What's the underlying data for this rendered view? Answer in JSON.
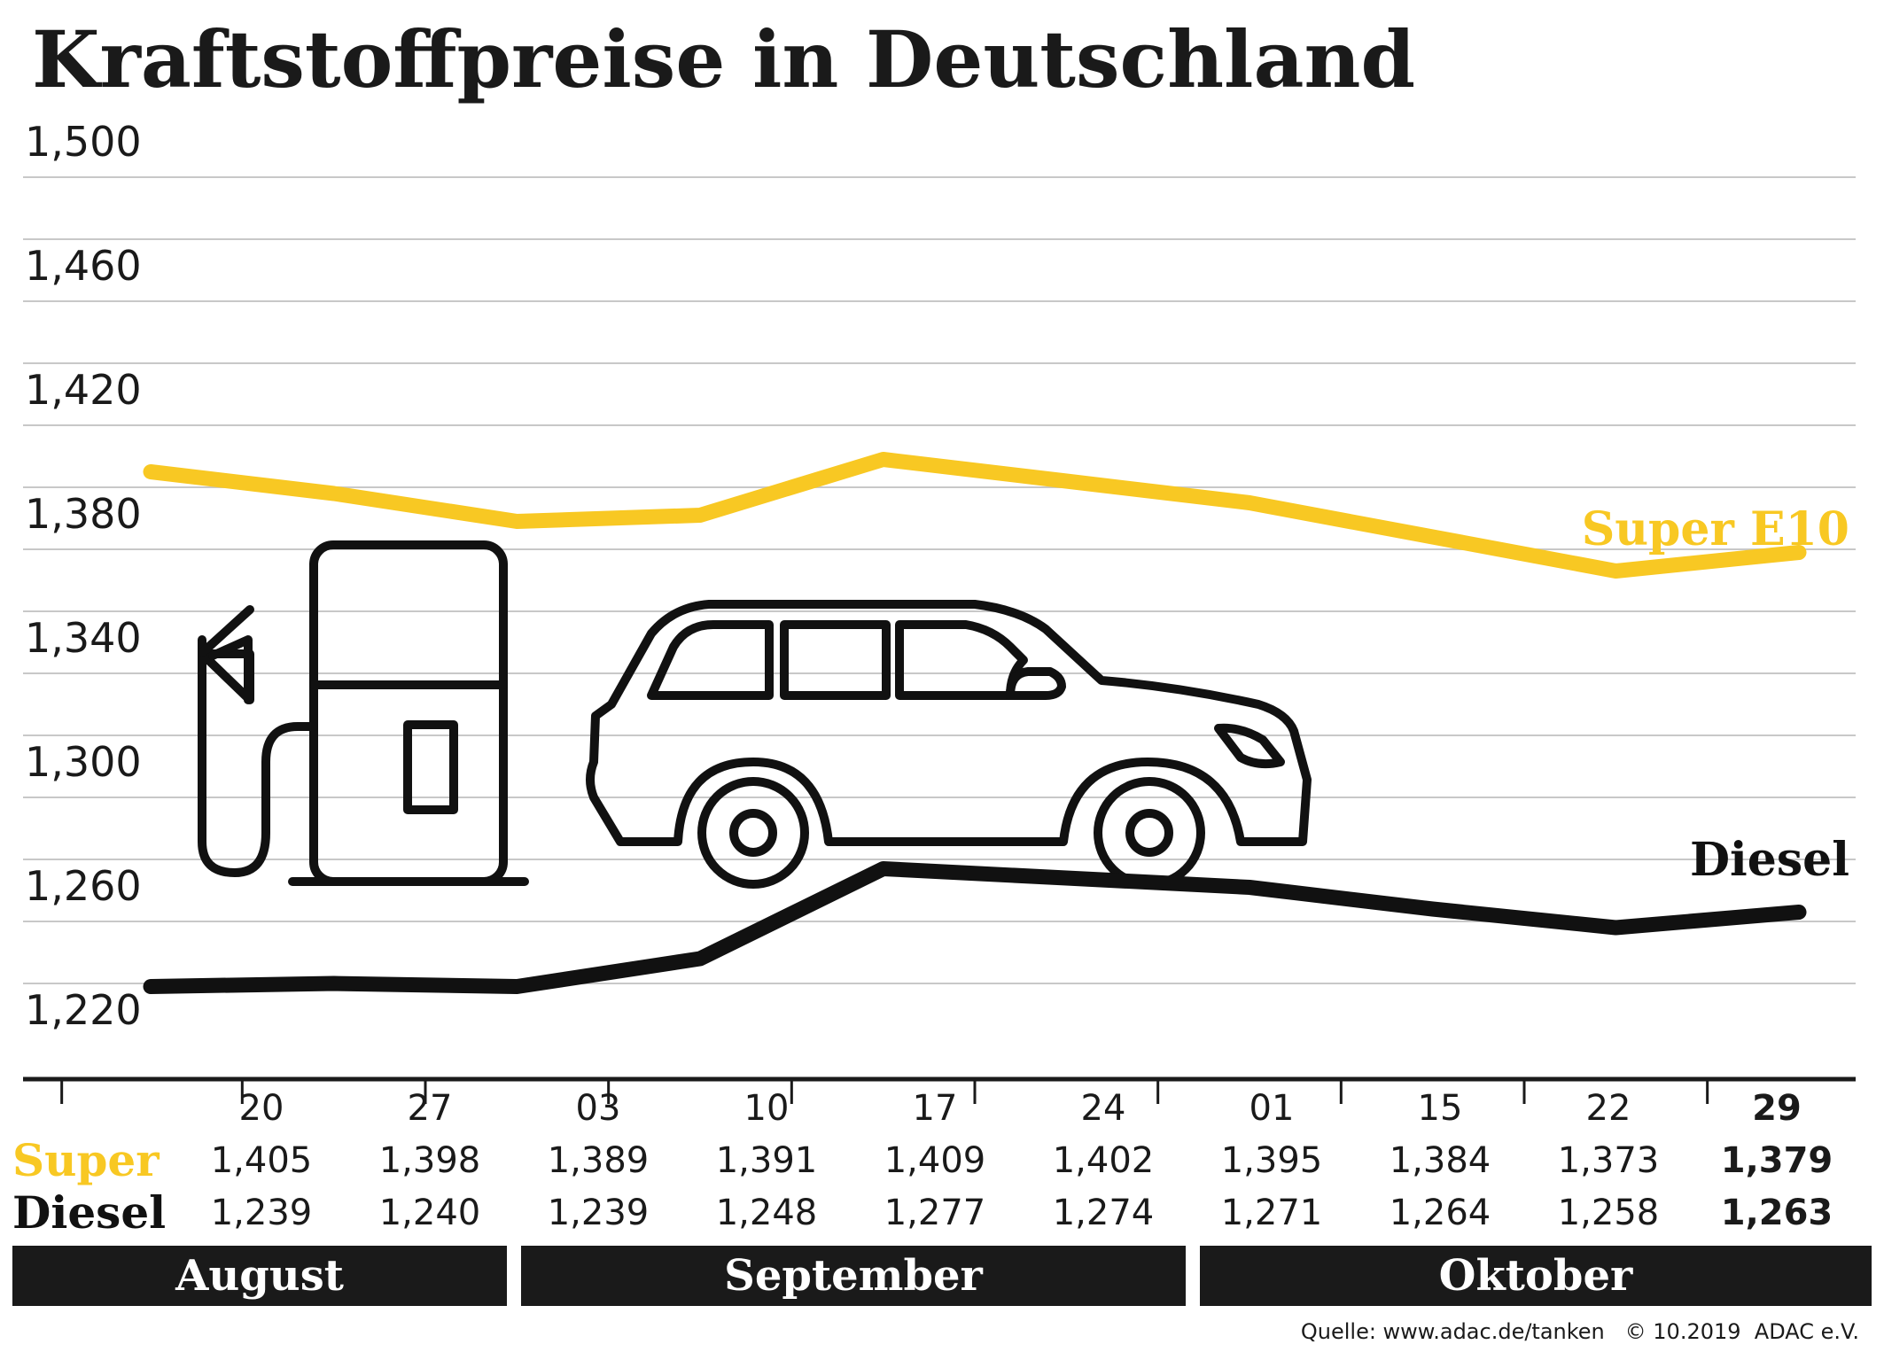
{
  "title": "Kraftstoffpreise in Deutschland",
  "source": "Quelle: www.adac.de/tanken   © 10.2019  ADAC e.V.",
  "colors": {
    "super": "#f8c823",
    "diesel": "#111111",
    "month_band": "#1a1a1a"
  },
  "icons": [
    "fuel-pump-icon",
    "car-icon"
  ],
  "chart_data": {
    "type": "line",
    "categories": [
      "20",
      "27",
      "03",
      "10",
      "17",
      "24",
      "01",
      "15",
      "22",
      "29"
    ],
    "y_ticks": [
      "1,500",
      "1,460",
      "1,420",
      "1,380",
      "1,340",
      "1,300",
      "1,260",
      "1,220"
    ],
    "ylim": [
      1.22,
      1.5
    ],
    "grid": true,
    "series": [
      {
        "name": "Super E10",
        "color": "#f8c823",
        "values": [
          1.405,
          1.398,
          1.389,
          1.391,
          1.409,
          1.402,
          1.395,
          1.384,
          1.373,
          1.379
        ]
      },
      {
        "name": "Diesel",
        "color": "#111111",
        "values": [
          1.239,
          1.24,
          1.239,
          1.248,
          1.277,
          1.274,
          1.271,
          1.264,
          1.258,
          1.263
        ]
      }
    ],
    "table": {
      "rows": [
        {
          "label": "Super",
          "color": "#f8c823",
          "values": [
            "1,405",
            "1,398",
            "1,389",
            "1,391",
            "1,409",
            "1,402",
            "1,395",
            "1,384",
            "1,373",
            "1,379"
          ]
        },
        {
          "label": "Diesel",
          "color": "#111111",
          "values": [
            "1,239",
            "1,240",
            "1,239",
            "1,248",
            "1,277",
            "1,274",
            "1,271",
            "1,264",
            "1,258",
            "1,263"
          ]
        }
      ]
    },
    "months": [
      "August",
      "September",
      "Oktober"
    ]
  }
}
